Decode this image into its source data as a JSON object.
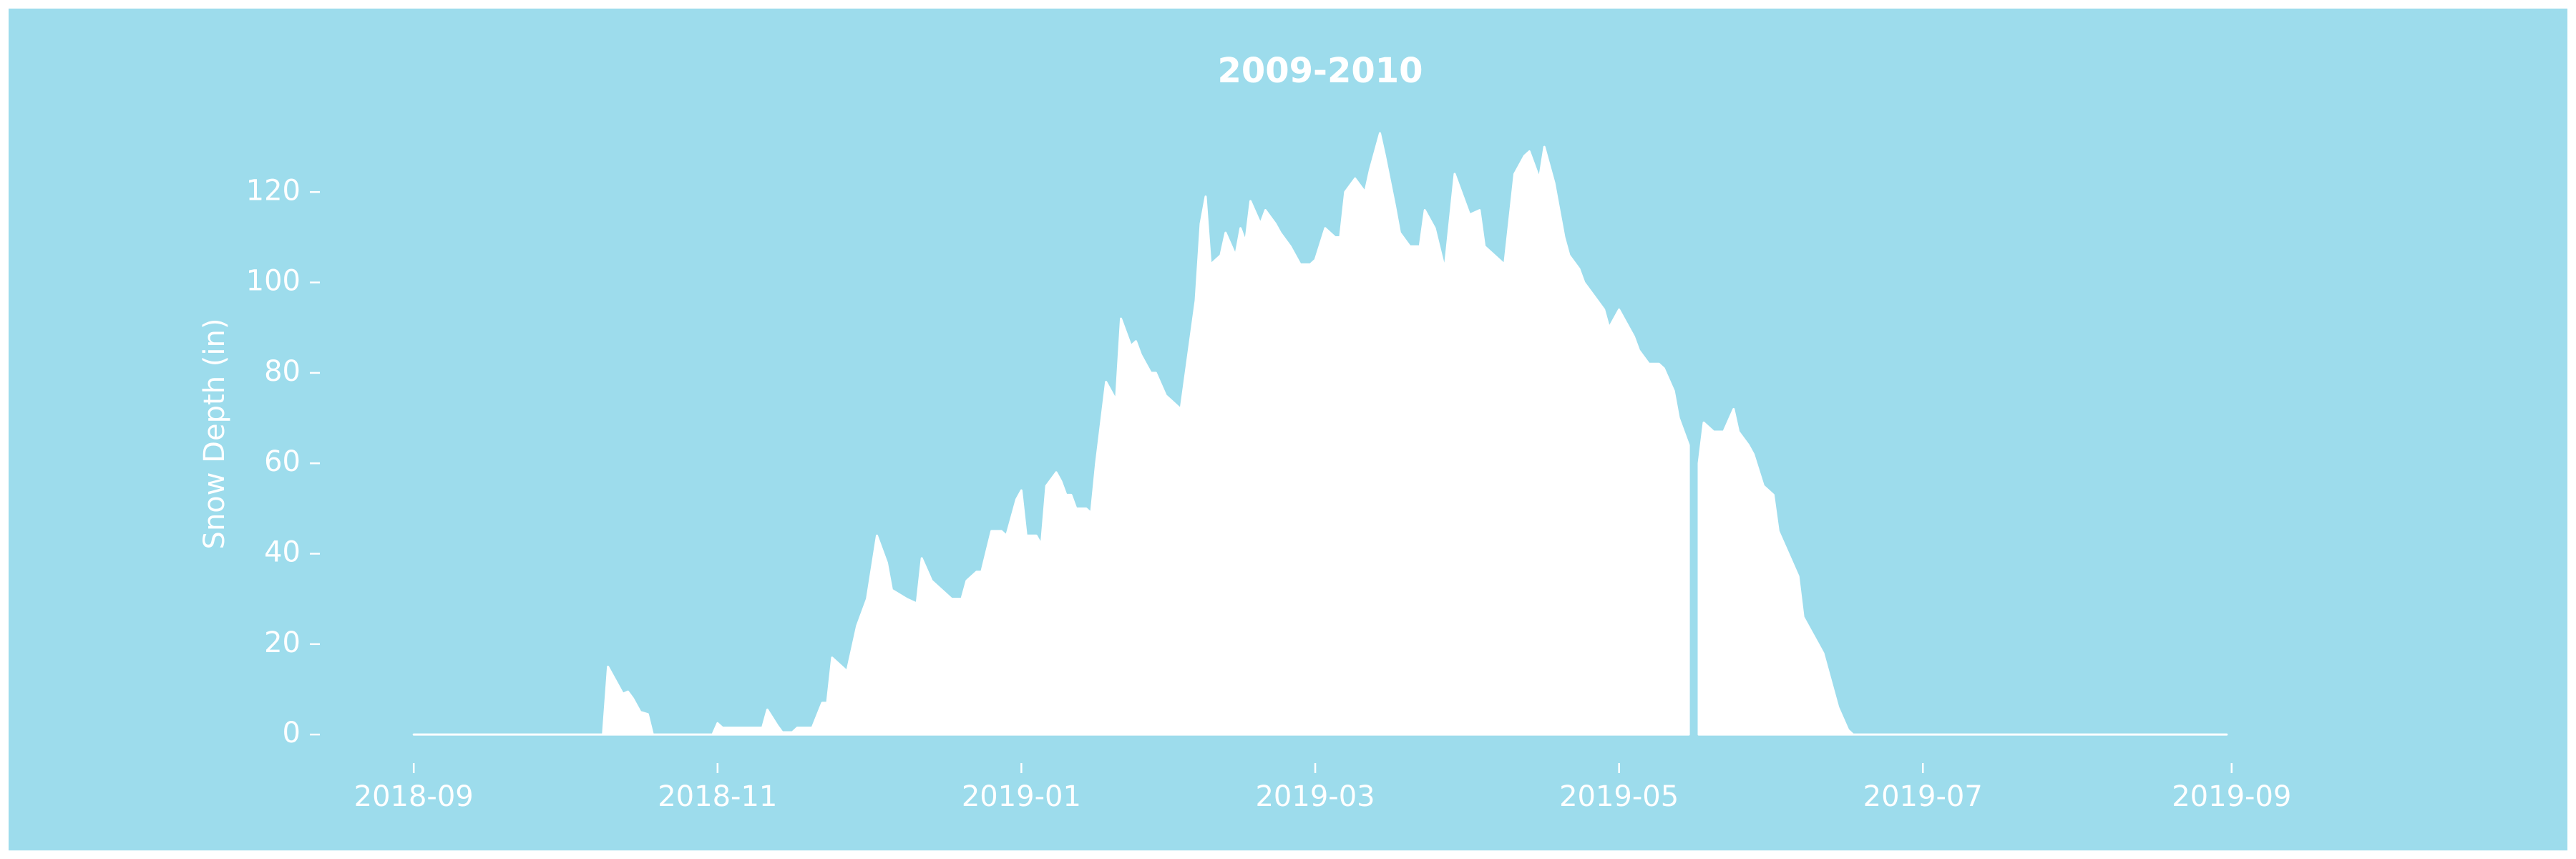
{
  "chart_data": {
    "type": "area",
    "title": "2009-2010",
    "ylabel": "Snow Depth (in)",
    "background": "#9ddcec",
    "series": [
      {
        "color": "#ffffff",
        "x": [
          0,
          38,
          39,
          40,
          42,
          43,
          44,
          45.5,
          47,
          48,
          60,
          61,
          62,
          70,
          71,
          73,
          74,
          76,
          77,
          80,
          82,
          83,
          84,
          87,
          89,
          91,
          92,
          93,
          95,
          96,
          99,
          101,
          102,
          104,
          106,
          108,
          110,
          111,
          113,
          114,
          116,
          118,
          119,
          121,
          122,
          123,
          125,
          126,
          127,
          129,
          130,
          131,
          132,
          133,
          135,
          136,
          137,
          139,
          141,
          142,
          144,
          145,
          146,
          148,
          149,
          151,
          152,
          154,
          155,
          157,
          158,
          159,
          160,
          162,
          163,
          165,
          166,
          167,
          168,
          170,
          171,
          173,
          174,
          176,
          178,
          180,
          181,
          183,
          185,
          186,
          187,
          189,
          191,
          192,
          194,
          195,
          197,
          198,
          200,
          202,
          203,
          205,
          207,
          209,
          211,
          212,
          214,
          215,
          217,
          219,
          221,
          223,
          224,
          226,
          227,
          229,
          231,
          232,
          234,
          235,
          237,
          239,
          240,
          242,
          243,
          245,
          246,
          248,
          250,
          251,
          253,
          254,
          256,
          257,
          258,
          259,
          261,
          263,
          265,
          266,
          268,
          269,
          271,
          273,
          274,
          276,
          278,
          279,
          281,
          283,
          284,
          286,
          288,
          289,
          364
        ],
        "values": [
          0,
          0,
          15,
          13,
          9,
          9.5,
          8,
          5,
          4.5,
          0,
          0,
          2.5,
          1.5,
          1.5,
          5.5,
          2,
          0.5,
          0.5,
          1.5,
          1.5,
          7,
          7,
          17,
          14,
          24,
          30,
          37,
          44,
          38,
          32,
          30,
          29,
          39,
          34,
          32,
          30,
          30,
          34,
          36,
          36,
          45,
          45,
          44,
          52,
          54,
          44,
          44,
          42,
          55,
          58,
          56,
          53,
          53,
          50,
          50,
          49,
          60,
          78,
          74,
          92,
          86,
          87,
          84,
          80,
          80,
          75,
          74,
          72,
          80,
          96,
          113,
          119,
          104,
          106,
          111,
          106,
          112,
          109,
          118,
          113,
          116,
          113,
          111,
          108,
          104,
          104,
          105,
          112,
          110,
          110,
          120,
          123,
          120,
          125,
          133,
          128,
          117,
          111,
          108,
          108,
          116,
          112,
          103,
          124,
          118,
          115,
          116,
          108,
          106,
          104,
          124,
          128,
          129,
          123,
          130,
          122,
          110,
          106,
          103,
          100,
          97,
          94,
          90,
          94,
          92,
          88,
          85,
          82,
          82,
          81,
          76,
          70,
          64,
          null,
          60,
          69,
          67,
          67,
          72,
          67,
          64,
          62,
          55,
          53,
          45,
          40,
          35,
          26,
          22,
          18,
          14,
          6,
          1,
          0,
          0
        ]
      }
    ],
    "xlim": [
      -20,
      385
    ],
    "ylim": [
      -6,
      140
    ],
    "xticks": [
      {
        "value": 0,
        "label": "2018-09"
      },
      {
        "value": 61,
        "label": "2018-11"
      },
      {
        "value": 122,
        "label": "2019-01"
      },
      {
        "value": 181,
        "label": "2019-03"
      },
      {
        "value": 242,
        "label": "2019-05"
      },
      {
        "value": 303,
        "label": "2019-07"
      },
      {
        "value": 365,
        "label": "2019-09"
      }
    ],
    "yticks": [
      0,
      20,
      40,
      60,
      80,
      100,
      120
    ]
  }
}
